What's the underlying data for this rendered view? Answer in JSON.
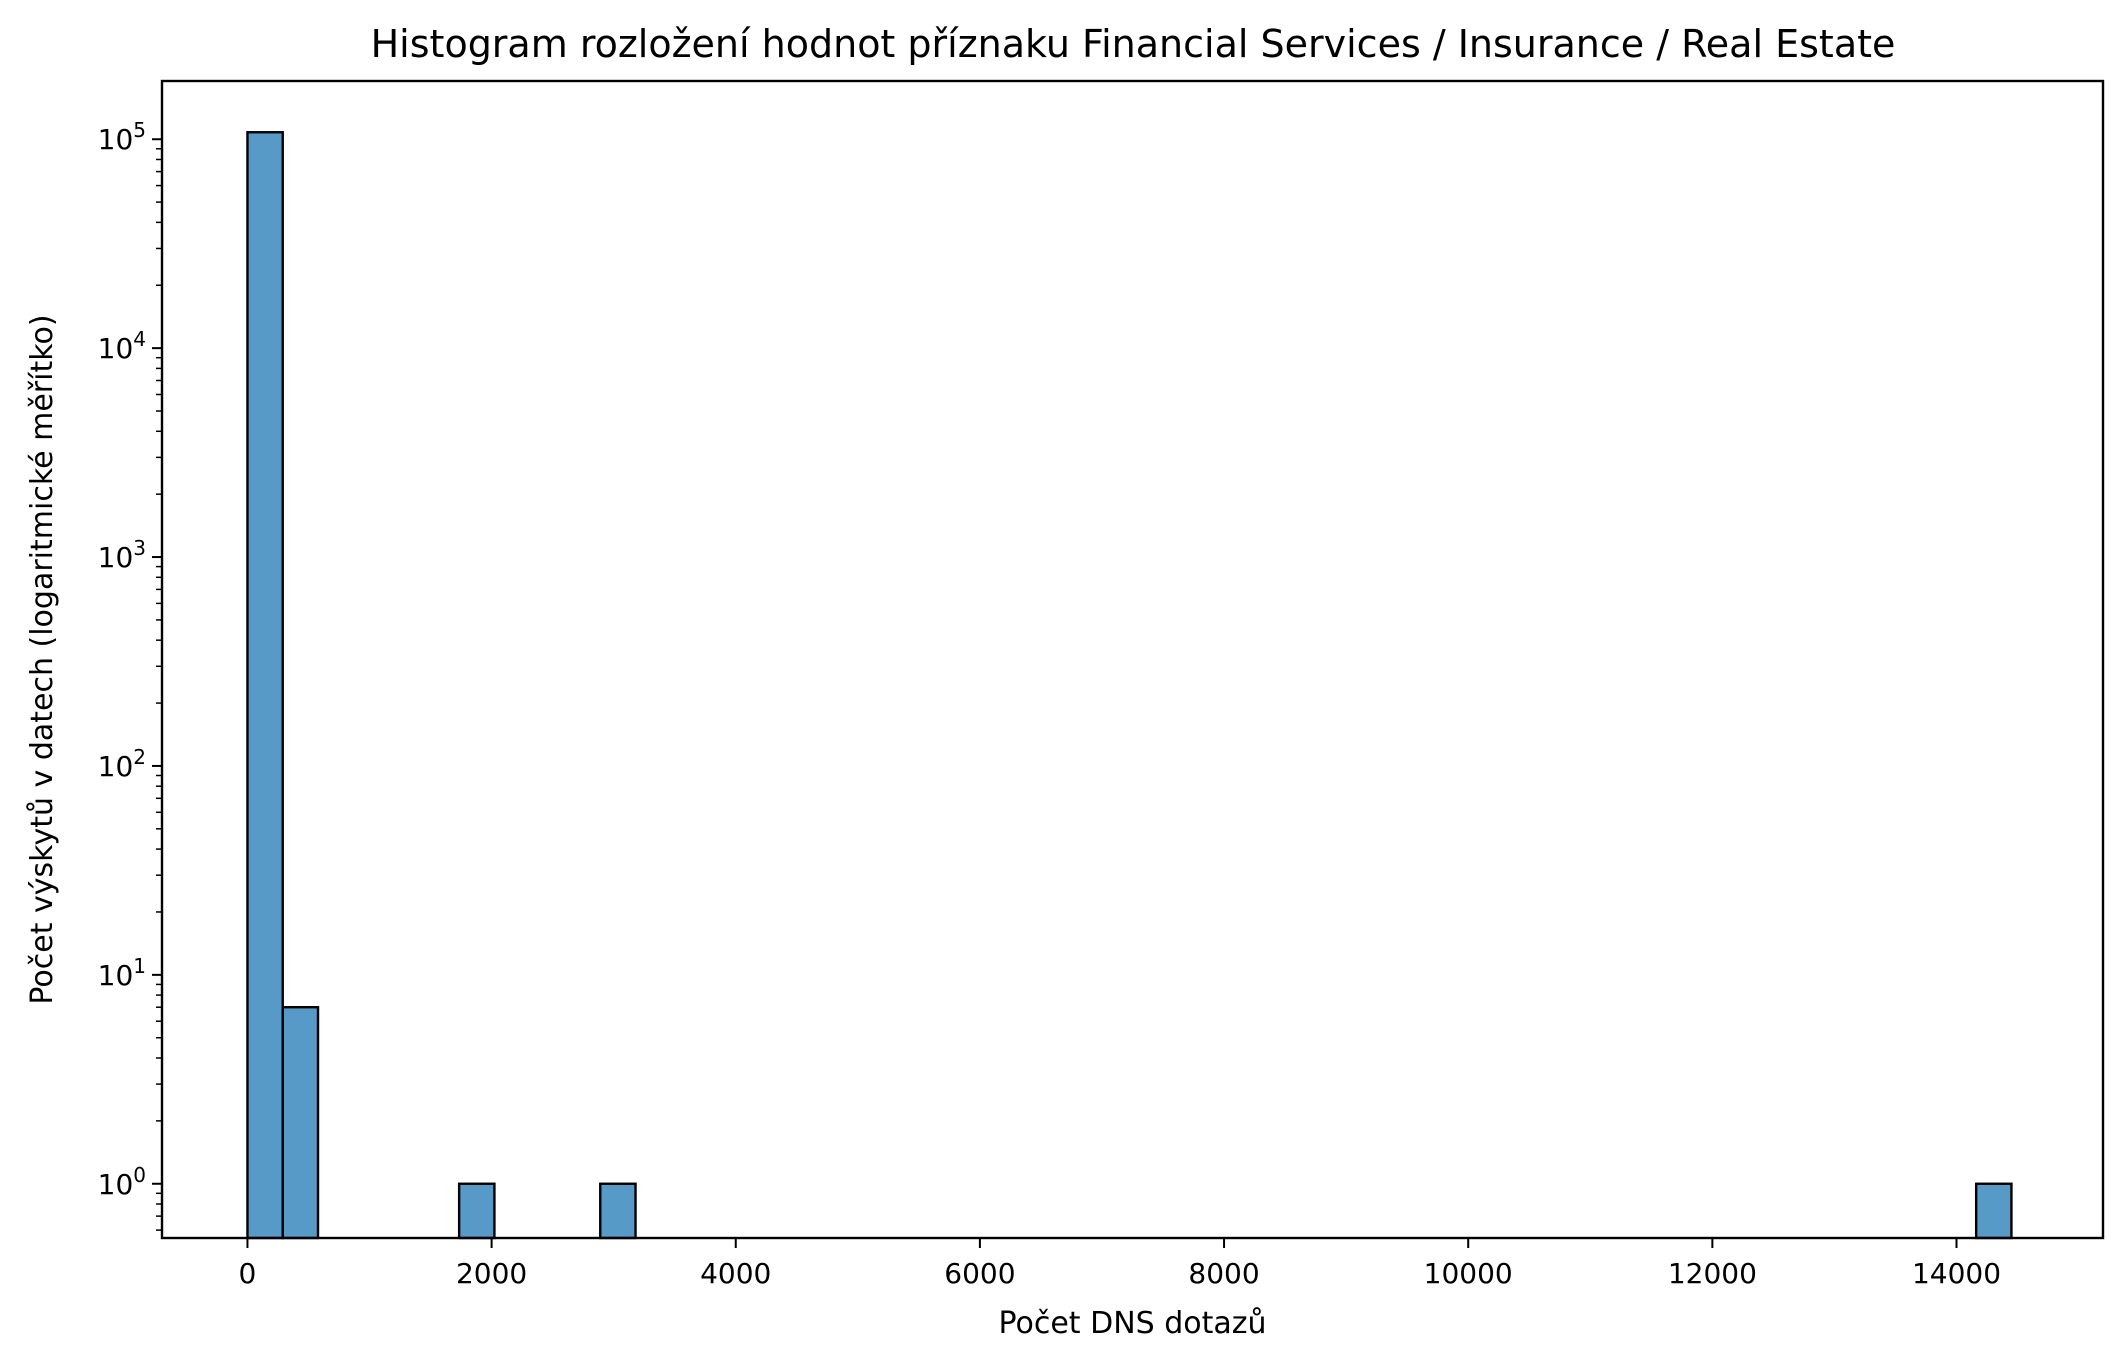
{
  "chart_data": {
    "type": "bar",
    "title": "Histogram rozložení hodnot příznaku Financial Services / Insurance / Real Estate",
    "xlabel": "Počet DNS dotazů",
    "ylabel": "Počet výskytů v datech (logaritmické měřítko)",
    "yscale": "log",
    "xlim": [
      -700,
      15200
    ],
    "ylim": [
      0.55,
      190000
    ],
    "grid": false,
    "bar_color": "#5799c7",
    "edge_color": "#000000",
    "bin_width": 289,
    "x_ticks": [
      0,
      2000,
      4000,
      6000,
      8000,
      10000,
      12000,
      14000
    ],
    "y_ticks": [
      {
        "value": 1,
        "base": "10",
        "exp": "0"
      },
      {
        "value": 10,
        "base": "10",
        "exp": "1"
      },
      {
        "value": 100,
        "base": "10",
        "exp": "2"
      },
      {
        "value": 1000,
        "base": "10",
        "exp": "3"
      },
      {
        "value": 10000,
        "base": "10",
        "exp": "4"
      },
      {
        "value": 100000,
        "base": "10",
        "exp": "5"
      }
    ],
    "bins": [
      {
        "x_start": 0,
        "x_end": 289,
        "count": 108000
      },
      {
        "x_start": 289,
        "x_end": 578,
        "count": 7
      },
      {
        "x_start": 1734,
        "x_end": 2023,
        "count": 1
      },
      {
        "x_start": 2890,
        "x_end": 3179,
        "count": 1
      },
      {
        "x_start": 14161,
        "x_end": 14450,
        "count": 1
      }
    ]
  }
}
